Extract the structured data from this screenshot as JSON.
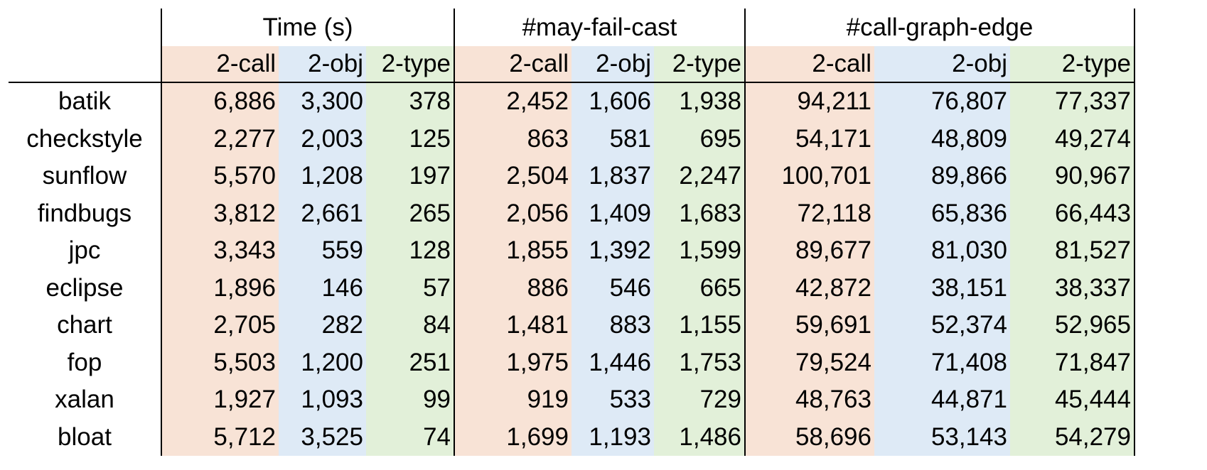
{
  "groups": [
    "Time (s)",
    "#may-fail-cast",
    "#call-graph-edge"
  ],
  "subcolumns": [
    "2-call",
    "2-obj",
    "2-type"
  ],
  "rows": [
    {
      "bench": "batik",
      "time": [
        "6,886",
        "3,300",
        "378"
      ],
      "cast": [
        "2,452",
        "1,606",
        "1,938"
      ],
      "edge": [
        "94,211",
        "76,807",
        "77,337"
      ]
    },
    {
      "bench": "checkstyle",
      "time": [
        "2,277",
        "2,003",
        "125"
      ],
      "cast": [
        "863",
        "581",
        "695"
      ],
      "edge": [
        "54,171",
        "48,809",
        "49,274"
      ]
    },
    {
      "bench": "sunflow",
      "time": [
        "5,570",
        "1,208",
        "197"
      ],
      "cast": [
        "2,504",
        "1,837",
        "2,247"
      ],
      "edge": [
        "100,701",
        "89,866",
        "90,967"
      ]
    },
    {
      "bench": "findbugs",
      "time": [
        "3,812",
        "2,661",
        "265"
      ],
      "cast": [
        "2,056",
        "1,409",
        "1,683"
      ],
      "edge": [
        "72,118",
        "65,836",
        "66,443"
      ]
    },
    {
      "bench": "jpc",
      "time": [
        "3,343",
        "559",
        "128"
      ],
      "cast": [
        "1,855",
        "1,392",
        "1,599"
      ],
      "edge": [
        "89,677",
        "81,030",
        "81,527"
      ]
    },
    {
      "bench": "eclipse",
      "time": [
        "1,896",
        "146",
        "57"
      ],
      "cast": [
        "886",
        "546",
        "665"
      ],
      "edge": [
        "42,872",
        "38,151",
        "38,337"
      ]
    },
    {
      "bench": "chart",
      "time": [
        "2,705",
        "282",
        "84"
      ],
      "cast": [
        "1,481",
        "883",
        "1,155"
      ],
      "edge": [
        "59,691",
        "52,374",
        "52,965"
      ]
    },
    {
      "bench": "fop",
      "time": [
        "5,503",
        "1,200",
        "251"
      ],
      "cast": [
        "1,975",
        "1,446",
        "1,753"
      ],
      "edge": [
        "79,524",
        "71,408",
        "71,847"
      ]
    },
    {
      "bench": "xalan",
      "time": [
        "1,927",
        "1,093",
        "99"
      ],
      "cast": [
        "919",
        "533",
        "729"
      ],
      "edge": [
        "48,763",
        "44,871",
        "45,444"
      ]
    },
    {
      "bench": "bloat",
      "time": [
        "5,712",
        "3,525",
        "74"
      ],
      "cast": [
        "1,699",
        "1,193",
        "1,486"
      ],
      "edge": [
        "58,696",
        "53,143",
        "54,279"
      ]
    }
  ],
  "chart_data": {
    "type": "table",
    "columns": [
      "",
      "Time (s) 2-call",
      "Time (s) 2-obj",
      "Time (s) 2-type",
      "#may-fail-cast 2-call",
      "#may-fail-cast 2-obj",
      "#may-fail-cast 2-type",
      "#call-graph-edge 2-call",
      "#call-graph-edge 2-obj",
      "#call-graph-edge 2-type"
    ],
    "rows": [
      [
        "batik",
        6886,
        3300,
        378,
        2452,
        1606,
        1938,
        94211,
        76807,
        77337
      ],
      [
        "checkstyle",
        2277,
        2003,
        125,
        863,
        581,
        695,
        54171,
        48809,
        49274
      ],
      [
        "sunflow",
        5570,
        1208,
        197,
        2504,
        1837,
        2247,
        100701,
        89866,
        90967
      ],
      [
        "findbugs",
        3812,
        2661,
        265,
        2056,
        1409,
        1683,
        72118,
        65836,
        66443
      ],
      [
        "jpc",
        3343,
        559,
        128,
        1855,
        1392,
        1599,
        89677,
        81030,
        81527
      ],
      [
        "eclipse",
        1896,
        146,
        57,
        886,
        546,
        665,
        42872,
        38151,
        38337
      ],
      [
        "chart",
        2705,
        282,
        84,
        1481,
        883,
        1155,
        59691,
        52374,
        52965
      ],
      [
        "fop",
        5503,
        1200,
        251,
        1975,
        1446,
        1753,
        79524,
        71408,
        71847
      ],
      [
        "xalan",
        1927,
        1093,
        99,
        919,
        533,
        729,
        48763,
        44871,
        45444
      ],
      [
        "bloat",
        5712,
        3525,
        74,
        1699,
        1193,
        1486,
        58696,
        53143,
        54279
      ]
    ]
  }
}
